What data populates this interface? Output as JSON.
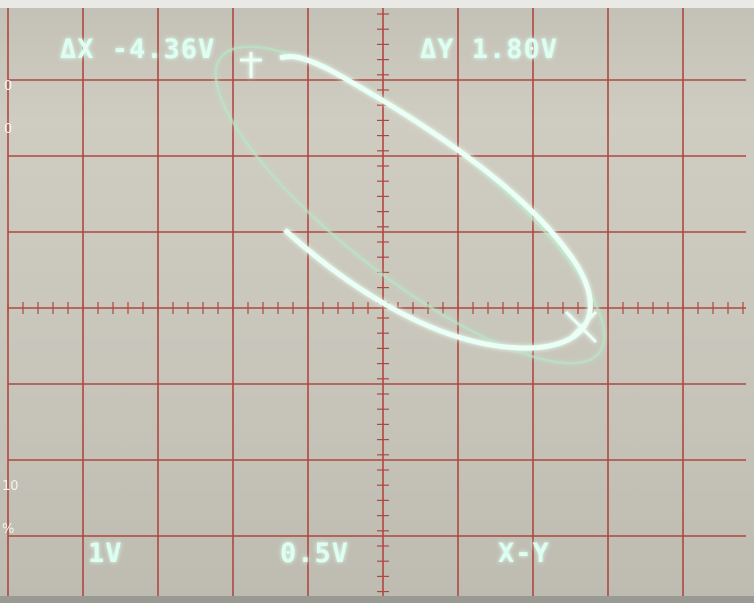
{
  "readouts": {
    "delta_x": "ΔX -4.36V",
    "delta_y": "ΔY 1.80V"
  },
  "settings": {
    "ch1": "1V",
    "ch2": "0.5V",
    "mode": "X-Y"
  },
  "scale_marks": [
    "0",
    "0",
    "10",
    "%"
  ]
}
